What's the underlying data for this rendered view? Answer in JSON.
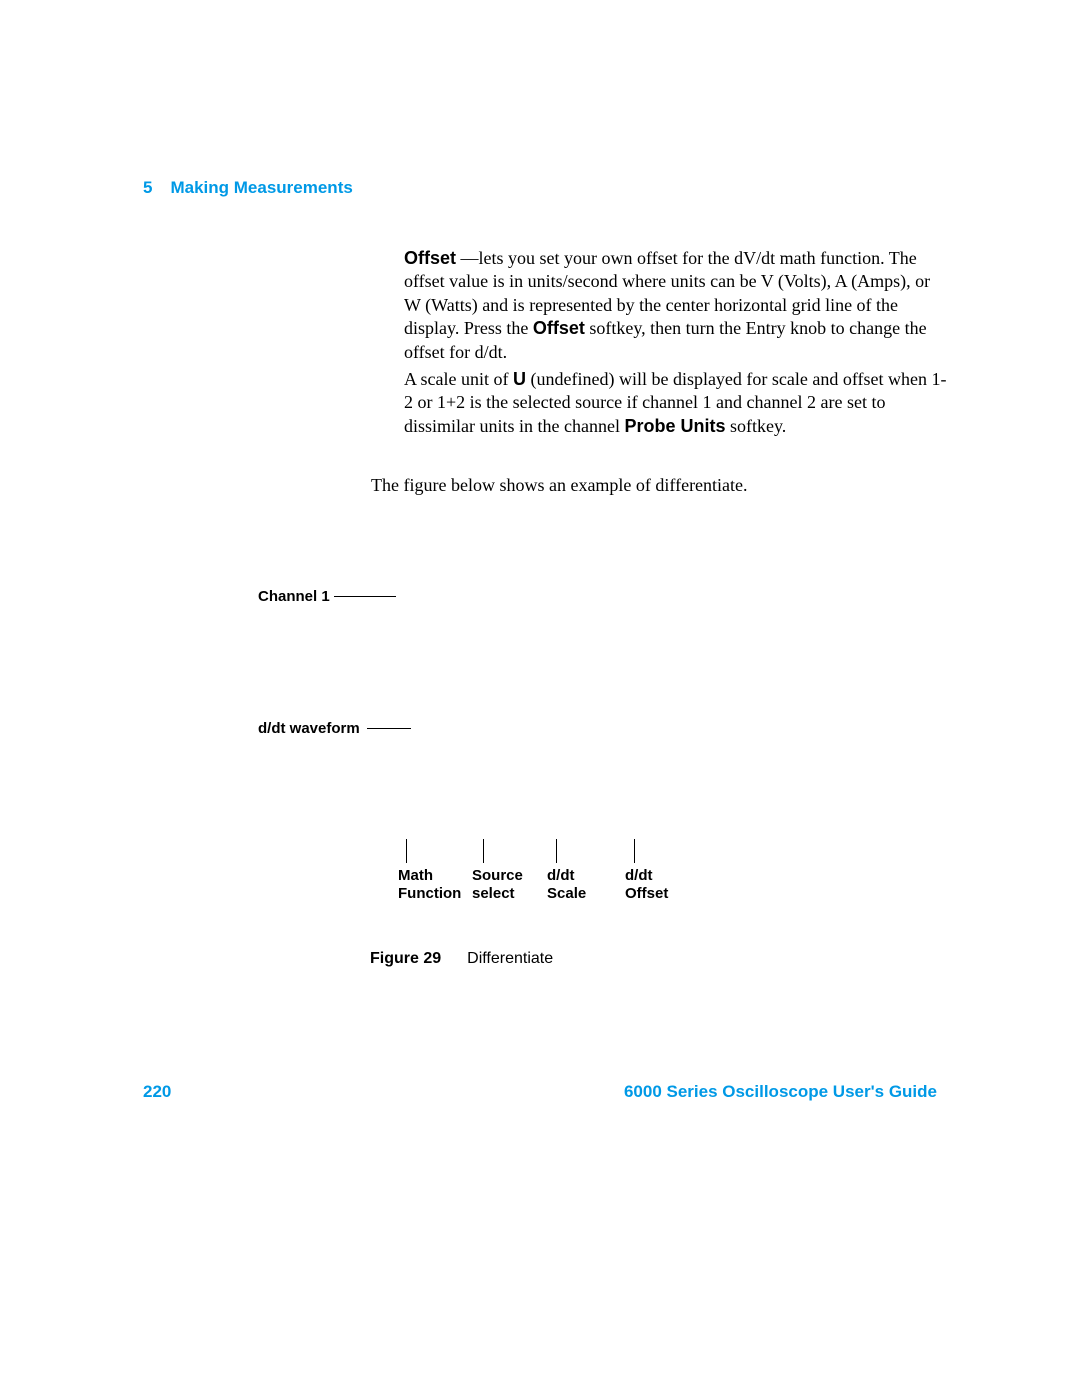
{
  "header": {
    "chapter_num": "5",
    "chapter_title": "Making Measurements"
  },
  "paragraphs": {
    "p1_lead": "Offset",
    "p1_body": " —lets you set your own offset for the dV/dt math function. The offset value is in units/second where units can be V (Volts), A (Amps), or W (Watts) and is represented by the center horizontal grid line of the display. Press the ",
    "p1_bold2": "Offset",
    "p1_body2": " softkey, then turn the Entry knob to change the offset for d/dt.",
    "p2_a": "A scale unit of ",
    "p2_bold1": "U",
    "p2_b": " (undefined) will be displayed for scale and offset when 1-2 or 1+2 is the selected source if channel 1 and channel 2 are set to dissimilar units in the channel ",
    "p2_bold2": "Probe Units",
    "p2_c": " softkey.",
    "p3": "The figure below shows an example of differentiate."
  },
  "figure": {
    "channel_label": "Channel 1",
    "ddt_label": "d/dt waveform",
    "ticks": {
      "t1_l1": "Math",
      "t1_l2": "Function",
      "t2_l1": "Source",
      "t2_l2": "select",
      "t3_l1": "d/dt",
      "t3_l2": "Scale",
      "t4_l1": "d/dt",
      "t4_l2": "Offset"
    },
    "caption_num": "Figure 29",
    "caption_text": "Differentiate"
  },
  "footer": {
    "page": "220",
    "guide": "6000 Series Oscilloscope User's Guide"
  }
}
